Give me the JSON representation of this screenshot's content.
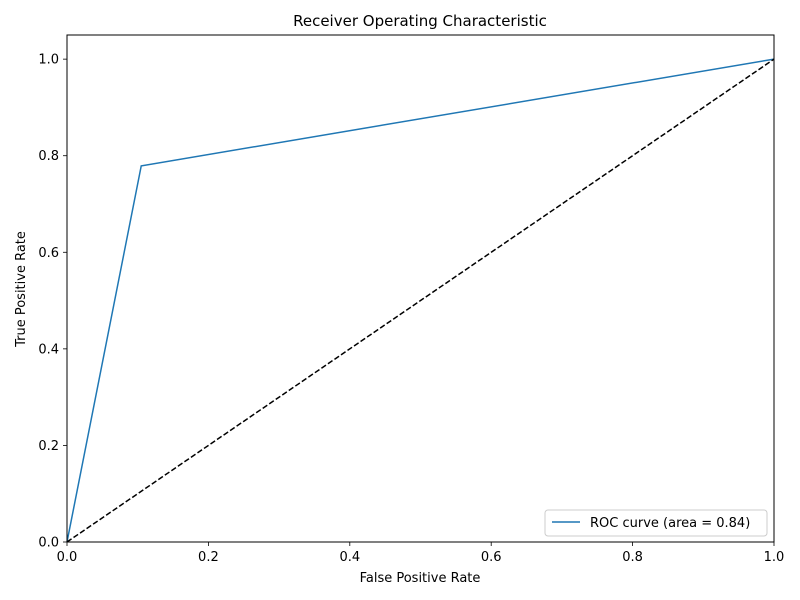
{
  "chart_data": {
    "type": "line",
    "title": "Receiver Operating Characteristic",
    "xlabel": "False Positive Rate",
    "ylabel": "True Positive Rate",
    "xlim": [
      0.0,
      1.0
    ],
    "ylim": [
      0.0,
      1.05
    ],
    "xticks": [
      0.0,
      0.2,
      0.4,
      0.6,
      0.8,
      1.0
    ],
    "xtick_labels": [
      "0.0",
      "0.2",
      "0.4",
      "0.6",
      "0.8",
      "1.0"
    ],
    "yticks": [
      0.0,
      0.2,
      0.4,
      0.6,
      0.8,
      1.0
    ],
    "ytick_labels": [
      "0.0",
      "0.2",
      "0.4",
      "0.6",
      "0.8",
      "1.0"
    ],
    "grid": false,
    "legend_placement": "lower-right",
    "series": [
      {
        "name": "ROC curve (area = 0.84)",
        "color": "#1f77b4",
        "style": "solid",
        "x": [
          0.0,
          0.105,
          1.0
        ],
        "y": [
          0.0,
          0.779,
          1.0
        ]
      },
      {
        "color": "#000000",
        "style": "dashed",
        "x": [
          0.0,
          1.0
        ],
        "y": [
          0.0,
          1.0
        ]
      }
    ]
  }
}
